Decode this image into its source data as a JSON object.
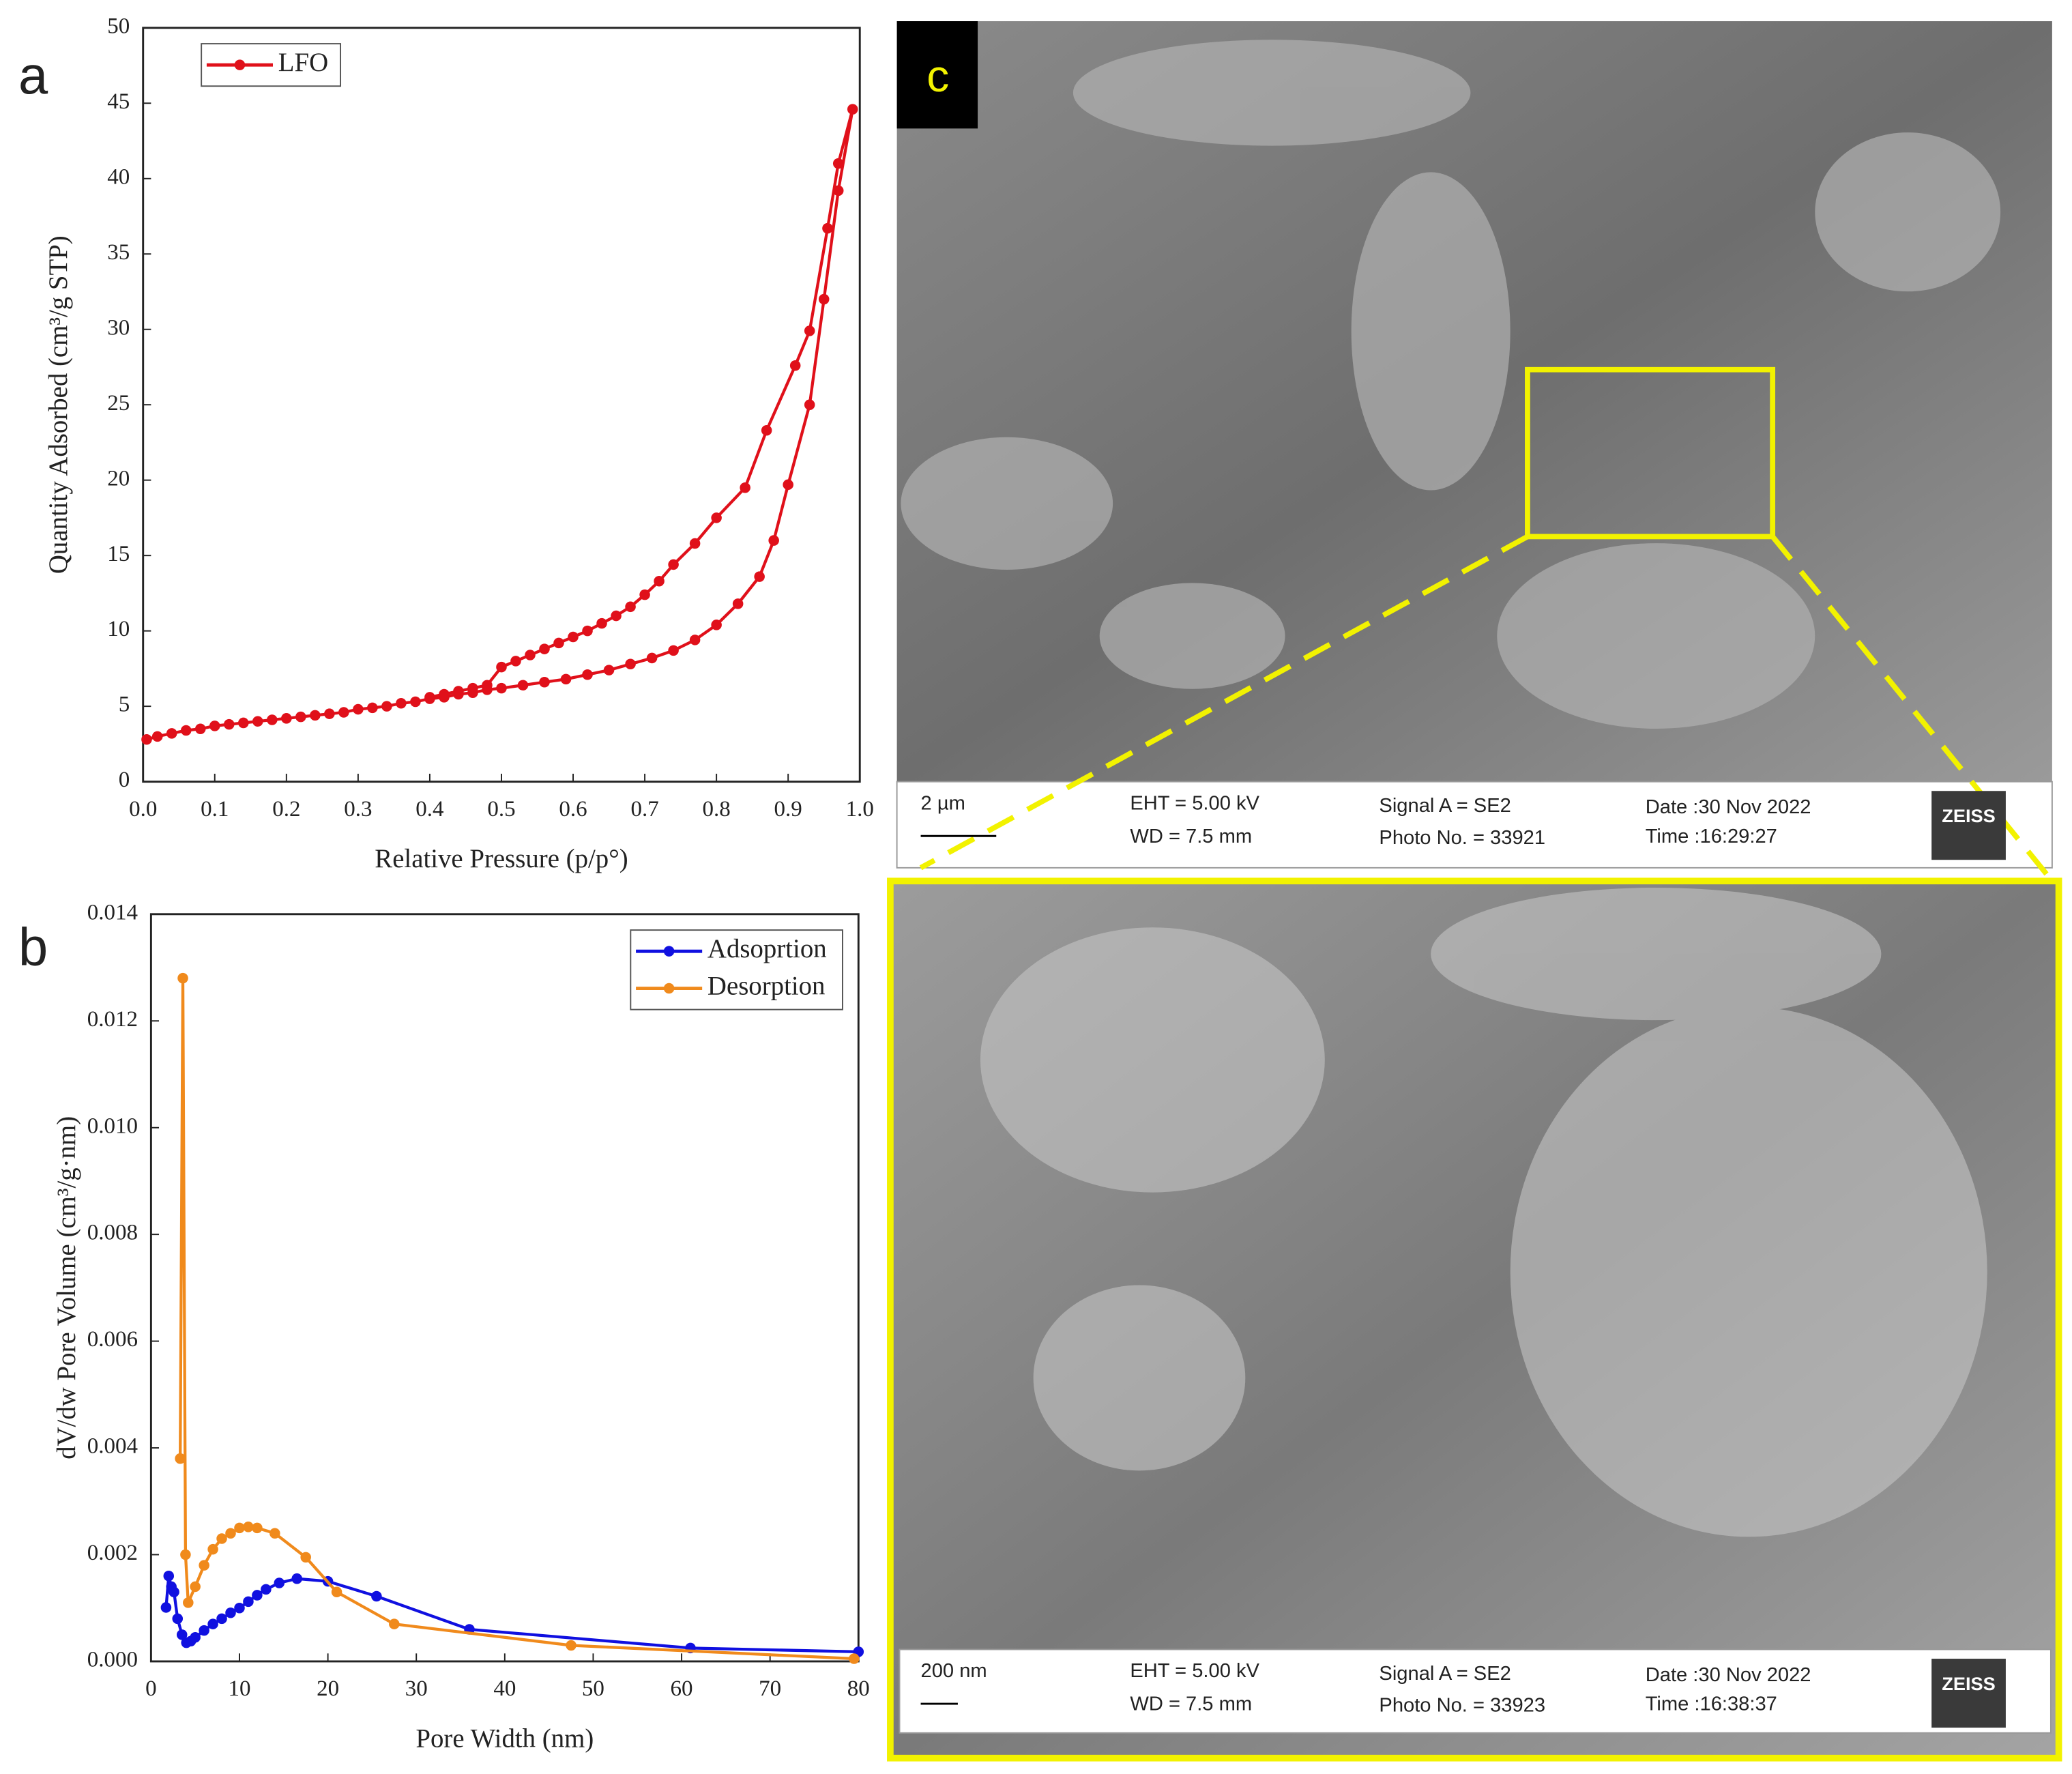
{
  "chart_data": [
    {
      "type": "line",
      "panel": "a",
      "x_label": "Relative Pressure (p/p°)",
      "y_label": "Quantity Adsorbed (cm³/g STP)",
      "xlim": [
        0,
        1.0
      ],
      "ylim": [
        0,
        50
      ],
      "xticks": [
        {
          "value": 0,
          "label": "0.0"
        },
        0.1,
        0.2,
        0.3,
        0.4,
        0.5,
        0.6,
        0.7,
        0.8,
        0.9,
        {
          "value": 1,
          "label": "1.0"
        }
      ],
      "yticks": [
        0,
        5,
        10,
        15,
        20,
        25,
        30,
        35,
        40,
        45,
        50
      ],
      "legend": "upper left",
      "series": [
        {
          "name": "LFO",
          "color": "#e0101a",
          "x": [
            0.005,
            0.02,
            0.04,
            0.06,
            0.08,
            0.1,
            0.12,
            0.14,
            0.16,
            0.18,
            0.2,
            0.22,
            0.24,
            0.26,
            0.28,
            0.3,
            0.32,
            0.34,
            0.36,
            0.38,
            0.4,
            0.42,
            0.44,
            0.46,
            0.48,
            0.5,
            0.53,
            0.56,
            0.59,
            0.62,
            0.65,
            0.68,
            0.71,
            0.74,
            0.77,
            0.8,
            0.83,
            0.86,
            0.88,
            0.9,
            0.93,
            0.95,
            0.97,
            0.99,
            0.97,
            0.955,
            0.93,
            0.91,
            0.87,
            0.84,
            0.8,
            0.77,
            0.74,
            0.72,
            0.7,
            0.68,
            0.66,
            0.64,
            0.62,
            0.6,
            0.58,
            0.56,
            0.54,
            0.52,
            0.5,
            0.48,
            0.46,
            0.44,
            0.42,
            0.4
          ],
          "values": [
            2.8,
            3.0,
            3.2,
            3.4,
            3.5,
            3.7,
            3.8,
            3.9,
            4.0,
            4.1,
            4.2,
            4.3,
            4.4,
            4.5,
            4.6,
            4.8,
            4.9,
            5.0,
            5.2,
            5.3,
            5.5,
            5.6,
            5.8,
            5.9,
            6.1,
            6.2,
            6.4,
            6.6,
            6.8,
            7.1,
            7.4,
            7.8,
            8.2,
            8.7,
            9.4,
            10.4,
            11.8,
            13.6,
            16.0,
            19.7,
            25.0,
            32.0,
            39.2,
            44.6,
            41.0,
            36.7,
            29.9,
            27.6,
            23.3,
            19.5,
            17.5,
            15.8,
            14.4,
            13.3,
            12.4,
            11.6,
            11.0,
            10.5,
            10.0,
            9.6,
            9.2,
            8.8,
            8.4,
            8.0,
            7.6,
            6.4,
            6.2,
            6.0,
            5.8,
            5.6
          ]
        }
      ]
    },
    {
      "type": "line",
      "panel": "b",
      "x_label": "Pore Width (nm)",
      "y_label": "dV/dw Pore Volume (cm³/g·nm)",
      "xlim": [
        0,
        80
      ],
      "ylim": [
        0,
        0.014
      ],
      "xticks": [
        0,
        10,
        20,
        30,
        40,
        50,
        60,
        70,
        80
      ],
      "yticks": [
        {
          "value": 0,
          "label": "0.000"
        },
        {
          "value": 0.002,
          "label": "0.002"
        },
        {
          "value": 0.004,
          "label": "0.004"
        },
        {
          "value": 0.006,
          "label": "0.006"
        },
        {
          "value": 0.008,
          "label": "0.008"
        },
        {
          "value": 0.01,
          "label": "0.010"
        },
        {
          "value": 0.012,
          "label": "0.012"
        },
        {
          "value": 0.014,
          "label": "0.014"
        }
      ],
      "legend": "upper right",
      "series": [
        {
          "name": "Adsoprtion",
          "color": "#1010e0",
          "x": [
            1.7,
            2,
            2.3,
            2.6,
            3,
            3.5,
            4,
            4.5,
            5,
            6,
            7,
            8,
            9,
            10,
            11,
            12,
            13,
            14.5,
            16.5,
            20,
            25.5,
            36,
            61,
            80
          ],
          "values": [
            0.00101,
            0.0016,
            0.0014,
            0.0013,
            0.0008,
            0.0005,
            0.00035,
            0.00038,
            0.00045,
            0.00058,
            0.0007,
            0.0008,
            0.00091,
            0.001,
            0.00112,
            0.00124,
            0.00135,
            0.00147,
            0.00155,
            0.0015,
            0.00122,
            0.0006,
            0.00025,
            0.00018
          ]
        },
        {
          "name": "Desorption",
          "color": "#f08a1c",
          "x": [
            3.3,
            3.6,
            3.9,
            4.2,
            5,
            6,
            7,
            8,
            9,
            10,
            11,
            12,
            14,
            17.5,
            21,
            27.5,
            47.5,
            79.5
          ],
          "values": [
            0.0038,
            0.0128,
            0.002,
            0.0011,
            0.0014,
            0.0018,
            0.0021,
            0.0023,
            0.0024,
            0.0025,
            0.00252,
            0.0025,
            0.0024,
            0.00195,
            0.0013,
            0.0007,
            0.0003,
            5e-05
          ]
        }
      ]
    }
  ],
  "panel_c": {
    "label": "c",
    "bars": [
      {
        "scale": "2 µm",
        "eht": "EHT =  5.00 kV",
        "wd": "WD =  7.5 mm",
        "signal": "Signal A = SE2",
        "photo": "Photo No. = 33921",
        "date": "Date :30 Nov 2022",
        "time": "Time :16:29:27",
        "brand": "ZEISS"
      },
      {
        "scale": "200 nm",
        "eht": "EHT =  5.00 kV",
        "wd": "WD =  7.5 mm",
        "signal": "Signal A = SE2",
        "photo": "Photo No. = 33923",
        "date": "Date :30 Nov 2022",
        "time": "Time :16:38:37",
        "brand": "ZEISS"
      }
    ]
  }
}
